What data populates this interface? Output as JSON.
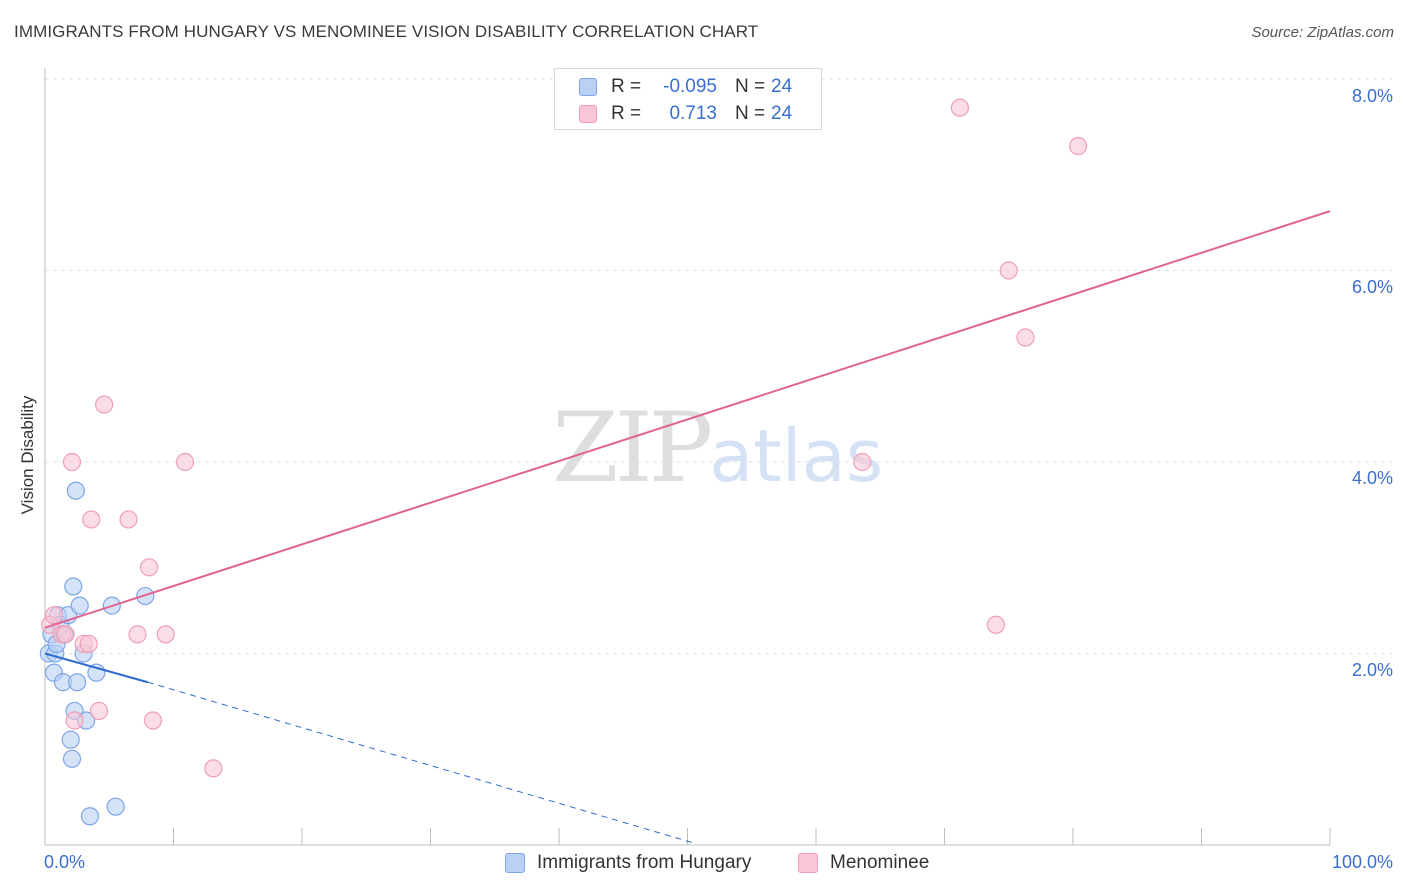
{
  "title": "IMMIGRANTS FROM HUNGARY VS MENOMINEE VISION DISABILITY CORRELATION CHART",
  "source": "Source: ZipAtlas.com",
  "watermark": {
    "zip": "ZIP",
    "atlas": "atlas"
  },
  "colors": {
    "blue_fill": "#b9d1f5",
    "blue_stroke": "#7ea6e6",
    "blue_line": "#2f6bd1",
    "pink_fill": "#f9c6d5",
    "pink_stroke": "#ee9fb7",
    "pink_line": "#e0648e",
    "tick_text": "#3a6fd0",
    "grid": "#e2e2e2"
  },
  "legend": {
    "rows": [
      {
        "r_label": "R =",
        "r_value": "-0.095",
        "n_label": "N =",
        "n_value": "24"
      },
      {
        "r_label": "R =",
        "r_value": "0.713",
        "n_label": "N =",
        "n_value": "24"
      }
    ]
  },
  "chart_data": {
    "type": "scatter",
    "title": "IMMIGRANTS FROM HUNGARY VS MENOMINEE VISION DISABILITY CORRELATION CHART",
    "xlabel": "",
    "ylabel": "Vision Disability",
    "xlim": [
      0,
      100
    ],
    "ylim": [
      0,
      8
    ],
    "x_tick_labels": [
      "0.0%",
      "100.0%"
    ],
    "y_tick_labels": [
      "2.0%",
      "4.0%",
      "6.0%",
      "8.0%"
    ],
    "y_ticks": [
      2,
      4,
      6,
      8
    ],
    "grid": true,
    "legend_position": "bottom",
    "series": [
      {
        "name": "Immigrants from Hungary",
        "points": [
          [
            0.3,
            2.0
          ],
          [
            0.5,
            2.2
          ],
          [
            0.7,
            1.8
          ],
          [
            0.8,
            2.0
          ],
          [
            0.9,
            2.1
          ],
          [
            1.0,
            2.4
          ],
          [
            1.2,
            2.3
          ],
          [
            1.4,
            1.7
          ],
          [
            1.5,
            2.2
          ],
          [
            1.8,
            2.4
          ],
          [
            2.0,
            1.1
          ],
          [
            2.1,
            0.9
          ],
          [
            2.2,
            2.7
          ],
          [
            2.3,
            1.4
          ],
          [
            2.5,
            1.7
          ],
          [
            2.4,
            3.7
          ],
          [
            2.7,
            2.5
          ],
          [
            3.0,
            2.0
          ],
          [
            3.2,
            1.3
          ],
          [
            3.5,
            0.3
          ],
          [
            4.0,
            1.8
          ],
          [
            5.2,
            2.5
          ],
          [
            5.5,
            0.4
          ],
          [
            7.8,
            2.6
          ]
        ],
        "trend": {
          "x0": 0,
          "y0": 2.0,
          "x1": 8,
          "y1": 1.7,
          "dashed_to_x": 50.5,
          "dashed_to_y": 0.02
        }
      },
      {
        "name": "Menominee",
        "points": [
          [
            0.4,
            2.3
          ],
          [
            0.7,
            2.4
          ],
          [
            1.3,
            2.2
          ],
          [
            1.6,
            2.2
          ],
          [
            2.1,
            4.0
          ],
          [
            2.3,
            1.3
          ],
          [
            3.0,
            2.1
          ],
          [
            3.4,
            2.1
          ],
          [
            3.6,
            3.4
          ],
          [
            4.2,
            1.4
          ],
          [
            4.6,
            4.6
          ],
          [
            6.5,
            3.4
          ],
          [
            7.2,
            2.2
          ],
          [
            8.1,
            2.9
          ],
          [
            8.4,
            1.3
          ],
          [
            9.4,
            2.2
          ],
          [
            10.9,
            4.0
          ],
          [
            13.1,
            0.8
          ],
          [
            63.6,
            4.0
          ],
          [
            71.2,
            7.7
          ],
          [
            74.0,
            2.3
          ],
          [
            75.0,
            6.0
          ],
          [
            76.3,
            5.3
          ],
          [
            80.4,
            7.3
          ]
        ],
        "trend": {
          "x0": 0,
          "y0": 2.27,
          "x1": 100,
          "y1": 6.62
        }
      }
    ]
  }
}
